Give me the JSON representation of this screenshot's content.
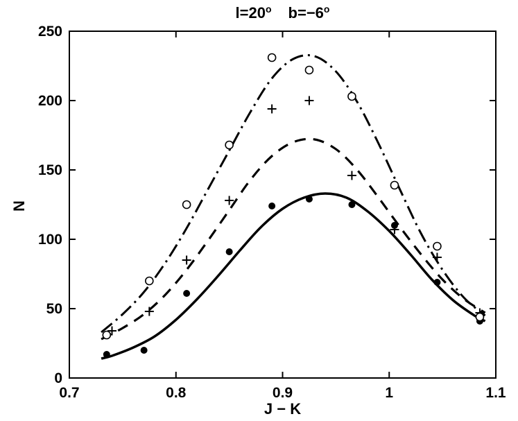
{
  "title": {
    "part1": "l=20",
    "sup1": "o",
    "part2": "b=−6",
    "sup2": "o"
  },
  "colors": {
    "foreground": "#000000",
    "background": "#ffffff"
  },
  "chart_data": {
    "type": "line",
    "title": "l=20°  b=−6°",
    "xlabel": "J − K",
    "ylabel": "N",
    "xlim": [
      0.7,
      1.1
    ],
    "ylim": [
      0,
      250
    ],
    "grid": false,
    "legend": "none",
    "x_ticks": {
      "values": [
        0.7,
        0.8,
        0.9,
        1.0,
        1.1
      ],
      "labels": [
        "0.7",
        "0.8",
        "0.9",
        "1",
        "1.1"
      ]
    },
    "y_ticks": {
      "values": [
        0,
        50,
        100,
        150,
        200,
        250
      ],
      "labels": [
        "0",
        "50",
        "100",
        "150",
        "200",
        "250"
      ]
    },
    "series": [
      {
        "name": "filled-circles-with-solid-fit",
        "marker": "filled-circle",
        "line_style": "solid",
        "line_width": 3.5,
        "marker_points": [
          [
            0.735,
            17
          ],
          [
            0.77,
            20
          ],
          [
            0.81,
            61
          ],
          [
            0.85,
            91
          ],
          [
            0.89,
            124
          ],
          [
            0.925,
            129
          ],
          [
            0.965,
            125
          ],
          [
            1.005,
            110
          ],
          [
            1.045,
            69
          ],
          [
            1.085,
            41
          ]
        ],
        "curve_points": [
          [
            0.73,
            14
          ],
          [
            0.74,
            16
          ],
          [
            0.76,
            22
          ],
          [
            0.78,
            30
          ],
          [
            0.8,
            42
          ],
          [
            0.82,
            57
          ],
          [
            0.84,
            74
          ],
          [
            0.86,
            92
          ],
          [
            0.88,
            109
          ],
          [
            0.9,
            122
          ],
          [
            0.92,
            130
          ],
          [
            0.94,
            133
          ],
          [
            0.96,
            130
          ],
          [
            0.98,
            120
          ],
          [
            1.0,
            106
          ],
          [
            1.02,
            89
          ],
          [
            1.04,
            71
          ],
          [
            1.06,
            56
          ],
          [
            1.08,
            45
          ],
          [
            1.09,
            41
          ]
        ]
      },
      {
        "name": "plus-markers-with-dashed-fit",
        "marker": "plus",
        "line_style": "dashed",
        "line_width": 3.2,
        "marker_points": [
          [
            0.74,
            34
          ],
          [
            0.775,
            48
          ],
          [
            0.81,
            85
          ],
          [
            0.85,
            128
          ],
          [
            0.89,
            194
          ],
          [
            0.925,
            200
          ],
          [
            0.965,
            146
          ],
          [
            1.005,
            107
          ],
          [
            1.045,
            87
          ],
          [
            1.085,
            47
          ]
        ],
        "curve_points": [
          [
            0.73,
            28
          ],
          [
            0.75,
            36
          ],
          [
            0.77,
            46
          ],
          [
            0.79,
            60
          ],
          [
            0.81,
            78
          ],
          [
            0.83,
            99
          ],
          [
            0.85,
            121
          ],
          [
            0.87,
            143
          ],
          [
            0.89,
            160
          ],
          [
            0.91,
            170
          ],
          [
            0.93,
            172
          ],
          [
            0.95,
            165
          ],
          [
            0.97,
            150
          ],
          [
            0.99,
            130
          ],
          [
            1.01,
            109
          ],
          [
            1.03,
            89
          ],
          [
            1.05,
            71
          ],
          [
            1.07,
            57
          ],
          [
            1.09,
            47
          ]
        ]
      },
      {
        "name": "open-circles-with-dashdot-fit",
        "marker": "open-circle",
        "line_style": "dashdot",
        "line_width": 3.0,
        "marker_points": [
          [
            0.735,
            31
          ],
          [
            0.775,
            70
          ],
          [
            0.81,
            125
          ],
          [
            0.85,
            168
          ],
          [
            0.89,
            231
          ],
          [
            0.925,
            222
          ],
          [
            0.965,
            203
          ],
          [
            1.005,
            139
          ],
          [
            1.045,
            95
          ],
          [
            1.085,
            44
          ]
        ],
        "curve_points": [
          [
            0.73,
            33
          ],
          [
            0.75,
            46
          ],
          [
            0.77,
            62
          ],
          [
            0.79,
            83
          ],
          [
            0.81,
            108
          ],
          [
            0.83,
            136
          ],
          [
            0.85,
            164
          ],
          [
            0.87,
            192
          ],
          [
            0.89,
            216
          ],
          [
            0.91,
            230
          ],
          [
            0.93,
            232
          ],
          [
            0.95,
            221
          ],
          [
            0.97,
            199
          ],
          [
            0.99,
            169
          ],
          [
            1.01,
            136
          ],
          [
            1.03,
            104
          ],
          [
            1.05,
            78
          ],
          [
            1.07,
            58
          ],
          [
            1.09,
            45
          ]
        ]
      }
    ]
  }
}
